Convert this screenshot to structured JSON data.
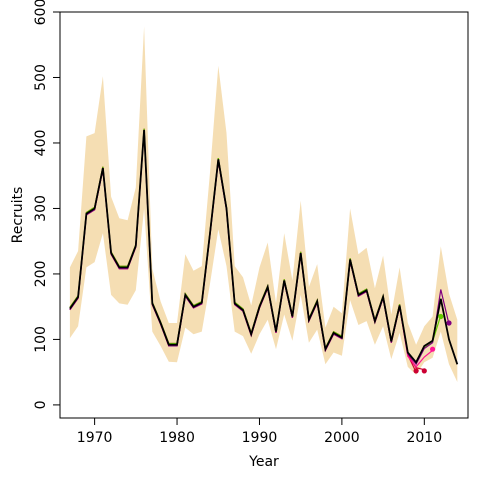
{
  "chart_data": {
    "type": "line",
    "title": "",
    "xlabel": "Year",
    "ylabel": "Recruits",
    "xlim": [
      1965.8,
      2015.3
    ],
    "ylim": [
      -20,
      600
    ],
    "x_ticks": [
      1970,
      1980,
      1990,
      2000,
      2010
    ],
    "y_ticks": [
      0,
      100,
      200,
      300,
      400,
      500,
      600
    ],
    "grid": false,
    "legend": "none",
    "colors": {
      "band": "#f5deb3",
      "main": "#000000",
      "retro_red": "#cc0033",
      "retro_purple": "#800080",
      "retro_pink": "#ff1493",
      "retro_green": "#66cc00"
    },
    "years": [
      1967,
      1968,
      1969,
      1970,
      1971,
      1972,
      1973,
      1974,
      1975,
      1976,
      1977,
      1978,
      1979,
      1980,
      1981,
      1982,
      1983,
      1984,
      1985,
      1986,
      1987,
      1988,
      1989,
      1990,
      1991,
      1992,
      1993,
      1994,
      1995,
      1996,
      1997,
      1998,
      1999,
      2000,
      2001,
      2002,
      2003,
      2004,
      2005,
      2006,
      2007,
      2008,
      2009,
      2010,
      2011,
      2012,
      2013,
      2014
    ],
    "series": [
      {
        "role": "estimate",
        "values": [
          147,
          165,
          292,
          300,
          362,
          232,
          210,
          210,
          243,
          420,
          155,
          125,
          92,
          92,
          168,
          150,
          156,
          262,
          375,
          300,
          155,
          145,
          108,
          150,
          180,
          112,
          190,
          135,
          232,
          130,
          158,
          85,
          110,
          103,
          222,
          168,
          175,
          128,
          165,
          97,
          152,
          80,
          65,
          90,
          98,
          162,
          100,
          62
        ]
      },
      {
        "role": "ci_upper",
        "values": [
          210,
          235,
          410,
          415,
          502,
          318,
          285,
          282,
          332,
          578,
          208,
          158,
          125,
          125,
          230,
          205,
          212,
          355,
          518,
          415,
          212,
          195,
          152,
          210,
          248,
          155,
          262,
          190,
          312,
          180,
          215,
          118,
          150,
          140,
          300,
          230,
          240,
          178,
          228,
          138,
          210,
          125,
          92,
          120,
          135,
          242,
          170,
          130
        ]
      },
      {
        "role": "ci_lower",
        "values": [
          102,
          120,
          210,
          218,
          262,
          168,
          155,
          153,
          175,
          300,
          112,
          90,
          66,
          65,
          118,
          108,
          112,
          185,
          268,
          212,
          112,
          105,
          78,
          108,
          130,
          85,
          138,
          98,
          168,
          95,
          115,
          62,
          80,
          75,
          160,
          122,
          128,
          92,
          120,
          70,
          110,
          58,
          46,
          65,
          72,
          112,
          62,
          35
        ]
      },
      {
        "role": "retrospective",
        "end_year": 2009,
        "x": [
          2008,
          2009
        ],
        "values": [
          78,
          52
        ],
        "color": "#cc0033",
        "end_value": 52
      },
      {
        "role": "retrospective",
        "end_year": 2010,
        "x": [
          2008,
          2009,
          2010
        ],
        "values": [
          75,
          55,
          52
        ],
        "color": "#cc0033",
        "end_value": 52
      },
      {
        "role": "retrospective",
        "end_year": 2011,
        "x": [
          2008,
          2009,
          2010,
          2011
        ],
        "values": [
          76,
          60,
          75,
          85
        ],
        "color": "#ff1493",
        "end_value": 85
      },
      {
        "role": "retrospective",
        "end_year": 2012,
        "x": [
          2008,
          2009,
          2010,
          2011,
          2012
        ],
        "values": [
          78,
          62,
          85,
          95,
          135
        ],
        "color": "#66cc00",
        "end_value": 135
      },
      {
        "role": "retrospective",
        "end_year": 2013,
        "x": [
          2008,
          2009,
          2010,
          2011,
          2012,
          2013
        ],
        "values": [
          80,
          64,
          88,
          97,
          178,
          125
        ],
        "color": "#800080",
        "end_value": 125
      }
    ]
  }
}
